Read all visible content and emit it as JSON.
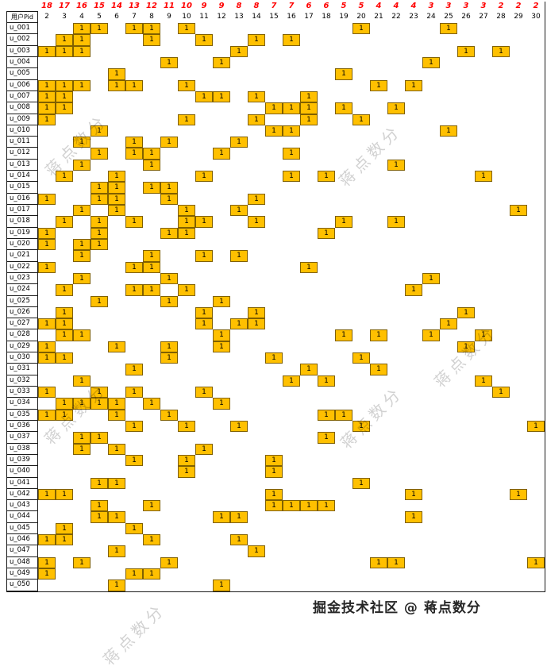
{
  "table": {
    "corner_label": "用户Pid",
    "columns": [
      2,
      3,
      4,
      5,
      6,
      7,
      8,
      9,
      10,
      11,
      12,
      13,
      14,
      15,
      16,
      17,
      18,
      19,
      20,
      21,
      22,
      23,
      24,
      25,
      26,
      27,
      28,
      29,
      30
    ],
    "sums": [
      18,
      17,
      16,
      15,
      14,
      13,
      12,
      11,
      10,
      9,
      9,
      8,
      8,
      7,
      7,
      6,
      6,
      5,
      5,
      4,
      4,
      4,
      3,
      3,
      3,
      3,
      2,
      2,
      2
    ],
    "cell_value": "1",
    "rows": [
      {
        "id": "u_001",
        "filled": [
          4,
          5,
          7,
          8,
          10,
          20,
          25
        ]
      },
      {
        "id": "u_002",
        "filled": [
          3,
          4,
          8,
          11,
          14,
          16
        ]
      },
      {
        "id": "u_003",
        "filled": [
          2,
          3,
          4,
          13,
          26,
          28
        ]
      },
      {
        "id": "u_004",
        "filled": [
          9,
          12,
          24
        ]
      },
      {
        "id": "u_005",
        "filled": [
          6,
          19
        ]
      },
      {
        "id": "u_006",
        "filled": [
          2,
          3,
          4,
          6,
          7,
          10,
          21,
          23
        ]
      },
      {
        "id": "u_007",
        "filled": [
          2,
          3,
          11,
          12,
          14,
          17
        ]
      },
      {
        "id": "u_008",
        "filled": [
          2,
          3,
          15,
          16,
          17,
          19,
          22
        ]
      },
      {
        "id": "u_009",
        "filled": [
          2,
          10,
          14,
          17,
          20
        ]
      },
      {
        "id": "u_010",
        "filled": [
          5,
          15,
          16,
          25
        ]
      },
      {
        "id": "u_011",
        "filled": [
          4,
          7,
          9,
          13
        ]
      },
      {
        "id": "u_012",
        "filled": [
          5,
          7,
          8,
          12,
          16
        ]
      },
      {
        "id": "u_013",
        "filled": [
          4,
          8,
          22
        ]
      },
      {
        "id": "u_014",
        "filled": [
          3,
          6,
          11,
          16,
          18,
          27
        ]
      },
      {
        "id": "u_015",
        "filled": [
          5,
          6,
          8,
          9
        ]
      },
      {
        "id": "u_016",
        "filled": [
          2,
          5,
          6,
          9,
          14
        ]
      },
      {
        "id": "u_017",
        "filled": [
          4,
          6,
          10,
          13,
          29
        ]
      },
      {
        "id": "u_018",
        "filled": [
          3,
          5,
          7,
          10,
          11,
          14,
          19,
          22
        ]
      },
      {
        "id": "u_019",
        "filled": [
          2,
          5,
          9,
          10,
          18
        ]
      },
      {
        "id": "u_020",
        "filled": [
          2,
          4,
          5
        ]
      },
      {
        "id": "u_021",
        "filled": [
          4,
          8,
          11,
          13
        ]
      },
      {
        "id": "u_022",
        "filled": [
          2,
          7,
          8,
          17
        ]
      },
      {
        "id": "u_023",
        "filled": [
          4,
          9,
          24
        ]
      },
      {
        "id": "u_024",
        "filled": [
          3,
          7,
          8,
          10,
          23
        ]
      },
      {
        "id": "u_025",
        "filled": [
          5,
          9,
          12
        ]
      },
      {
        "id": "u_026",
        "filled": [
          3,
          11,
          14,
          26
        ]
      },
      {
        "id": "u_027",
        "filled": [
          2,
          3,
          11,
          13,
          14,
          25
        ]
      },
      {
        "id": "u_028",
        "filled": [
          3,
          4,
          12,
          19,
          21,
          24,
          27
        ]
      },
      {
        "id": "u_029",
        "filled": [
          2,
          6,
          9,
          12,
          26
        ]
      },
      {
        "id": "u_030",
        "filled": [
          2,
          3,
          9,
          15,
          20
        ]
      },
      {
        "id": "u_031",
        "filled": [
          7,
          17,
          21
        ]
      },
      {
        "id": "u_032",
        "filled": [
          4,
          16,
          18,
          27
        ]
      },
      {
        "id": "u_033",
        "filled": [
          2,
          5,
          7,
          11,
          28
        ]
      },
      {
        "id": "u_034",
        "filled": [
          3,
          4,
          5,
          6,
          8,
          12
        ]
      },
      {
        "id": "u_035",
        "filled": [
          2,
          3,
          6,
          9,
          18,
          19
        ]
      },
      {
        "id": "u_036",
        "filled": [
          7,
          10,
          13,
          20,
          30
        ]
      },
      {
        "id": "u_037",
        "filled": [
          4,
          5,
          18
        ]
      },
      {
        "id": "u_038",
        "filled": [
          4,
          6,
          11
        ]
      },
      {
        "id": "u_039",
        "filled": [
          7,
          10,
          15
        ]
      },
      {
        "id": "u_040",
        "filled": [
          10,
          15
        ]
      },
      {
        "id": "u_041",
        "filled": [
          5,
          6,
          20
        ]
      },
      {
        "id": "u_042",
        "filled": [
          2,
          3,
          15,
          23,
          29
        ]
      },
      {
        "id": "u_043",
        "filled": [
          5,
          8,
          15,
          16,
          17,
          18
        ]
      },
      {
        "id": "u_044",
        "filled": [
          5,
          6,
          12,
          13,
          23
        ]
      },
      {
        "id": "u_045",
        "filled": [
          3,
          7
        ]
      },
      {
        "id": "u_046",
        "filled": [
          2,
          3,
          8,
          13
        ]
      },
      {
        "id": "u_047",
        "filled": [
          6,
          14
        ]
      },
      {
        "id": "u_048",
        "filled": [
          2,
          4,
          9,
          21,
          22,
          30
        ]
      },
      {
        "id": "u_049",
        "filled": [
          2,
          7,
          8
        ]
      },
      {
        "id": "u_050",
        "filled": [
          6,
          12
        ]
      }
    ]
  },
  "watermark": {
    "text": "蒋点数分"
  },
  "footer": {
    "text": "掘金技术社区 @ 蒋点数分"
  },
  "colors": {
    "cell_fill": "#FFC000",
    "cell_border": "#806000",
    "sum_text": "#FF0000",
    "grid_line": "#1A1A1A"
  }
}
